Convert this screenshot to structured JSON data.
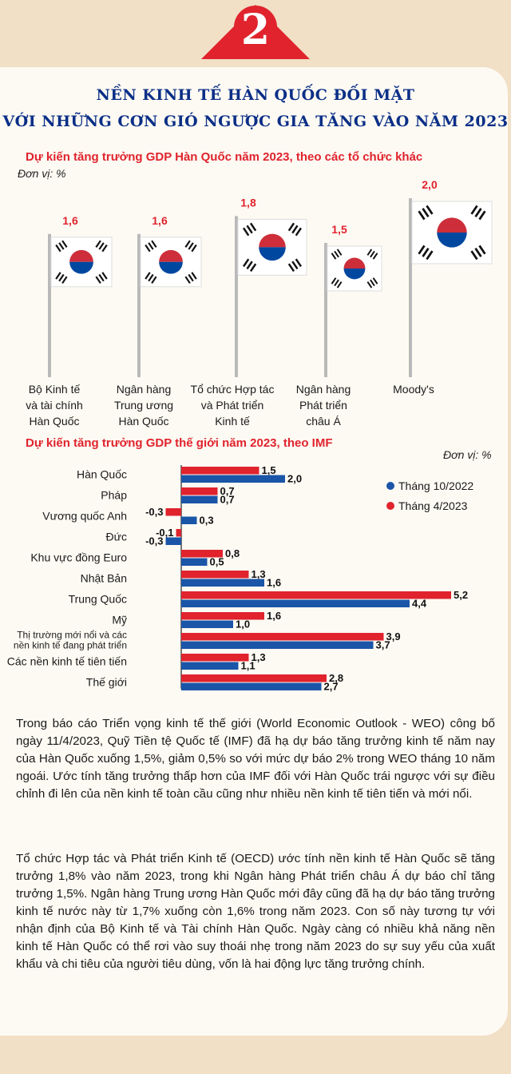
{
  "badge": {
    "number": "2"
  },
  "title": {
    "line1": "NỀN KINH TẾ HÀN QUỐC ĐỐI MẶT",
    "line2": "VỚI NHỮNG CƠN GIÓ NGƯỢC GIA TĂNG VÀO NĂM 2023"
  },
  "colors": {
    "red": "#e0232d",
    "blue": "#1a55a8",
    "navy": "#0b2f87",
    "card": "#fdfaf3",
    "bg": "#f1dfc6"
  },
  "chart_data": [
    {
      "type": "bar",
      "title": "Dự kiến tăng trưởng GDP Hàn Quốc năm 2023, theo các tổ chức khác",
      "unit": "Đơn vị: %",
      "marks": "flag-icon",
      "categories": [
        [
          "Bộ Kinh tế",
          "và tài chính",
          "Hàn Quốc"
        ],
        [
          "Ngân hàng",
          "Trung ương",
          "Hàn Quốc"
        ],
        [
          "Tổ chức Hợp tác",
          "và Phát triển",
          "Kinh tế"
        ],
        [
          "Ngân hàng",
          "Phát triển",
          "châu Á"
        ],
        [
          "Moody's"
        ]
      ],
      "values": [
        1.6,
        1.6,
        1.8,
        1.5,
        2.0
      ],
      "labels": [
        "1,6",
        "1,6",
        "1,8",
        "1,5",
        "2,0"
      ]
    },
    {
      "type": "bar",
      "orientation": "horizontal",
      "title": "Dự kiến tăng trưởng GDP thế giới năm 2023, theo IMF",
      "unit": "Đơn vị: %",
      "categories": [
        [
          "Hàn Quốc"
        ],
        [
          "Pháp"
        ],
        [
          "Vương quốc Anh"
        ],
        [
          "Đức"
        ],
        [
          "Khu vực đồng Euro"
        ],
        [
          "Nhật Bản"
        ],
        [
          "Trung Quốc"
        ],
        [
          "Mỹ"
        ],
        [
          "Thị trường mới nổi và các",
          "nền kinh tế đang phát triển"
        ],
        [
          "Các nền kinh tế tiên tiến"
        ],
        [
          "Thế giới"
        ]
      ],
      "series": [
        {
          "name": "Tháng 4/2023",
          "color": "#e0232d",
          "values": [
            1.5,
            0.7,
            -0.3,
            -0.1,
            0.8,
            1.3,
            5.2,
            1.6,
            3.9,
            1.3,
            2.8
          ],
          "labels": [
            "1,5",
            "0,7",
            "-0,3",
            "-0,1",
            "0,8",
            "1,3",
            "5,2",
            "1,6",
            "3,9",
            "1,3",
            "2,8"
          ]
        },
        {
          "name": "Tháng 10/2022",
          "color": "#1a55a8",
          "values": [
            2.0,
            0.7,
            0.3,
            -0.3,
            0.5,
            1.6,
            4.4,
            1.0,
            3.7,
            1.1,
            2.7
          ],
          "labels": [
            "2,0",
            "0,7",
            "0,3",
            "-0,3",
            "0,5",
            "1,6",
            "4,4",
            "1,0",
            "3,7",
            "1,1",
            "2,7"
          ]
        }
      ],
      "legend": {
        "position": "top-right",
        "order": [
          "Tháng 10/2022",
          "Tháng 4/2023"
        ]
      }
    }
  ],
  "paragraphs": [
    "Trong báo cáo Triển vọng kinh tế thế giới (World Economic Outlook - WEO) công bố ngày 11/4/2023, Quỹ Tiền tệ Quốc tế (IMF) đã hạ dự báo tăng trưởng kinh tế năm nay của Hàn Quốc xuống 1,5%, giảm 0,5% so với mức dự báo 2% trong WEO tháng 10 năm ngoái. Ước tính tăng trưởng thấp hơn của IMF đối với Hàn Quốc trái ngược với sự điều chỉnh đi lên của nền kinh tế toàn cầu cũng như nhiều nền kinh tế tiên tiến và mới nổi.",
    "Tổ chức Hợp tác và Phát triển Kinh tế (OECD) ước tính nền kinh tế Hàn Quốc sẽ tăng trưởng 1,8% vào năm 2023, trong khi Ngân hàng Phát triển châu Á dự báo chỉ tăng trưởng 1,5%. Ngân hàng Trung ương Hàn Quốc mới đây cũng đã hạ dự báo tăng trưởng kinh tế nước này từ 1,7% xuống còn 1,6% trong năm 2023. Con số này tương tự với nhận định của Bộ Kinh tế và Tài chính Hàn Quốc. Ngày càng có nhiều khả năng nền kinh tế Hàn Quốc có thể rơi vào suy thoái nhẹ trong năm 2023 do sự suy yếu của xuất khẩu và chi tiêu của người tiêu dùng, vốn là hai động lực tăng trưởng chính."
  ]
}
